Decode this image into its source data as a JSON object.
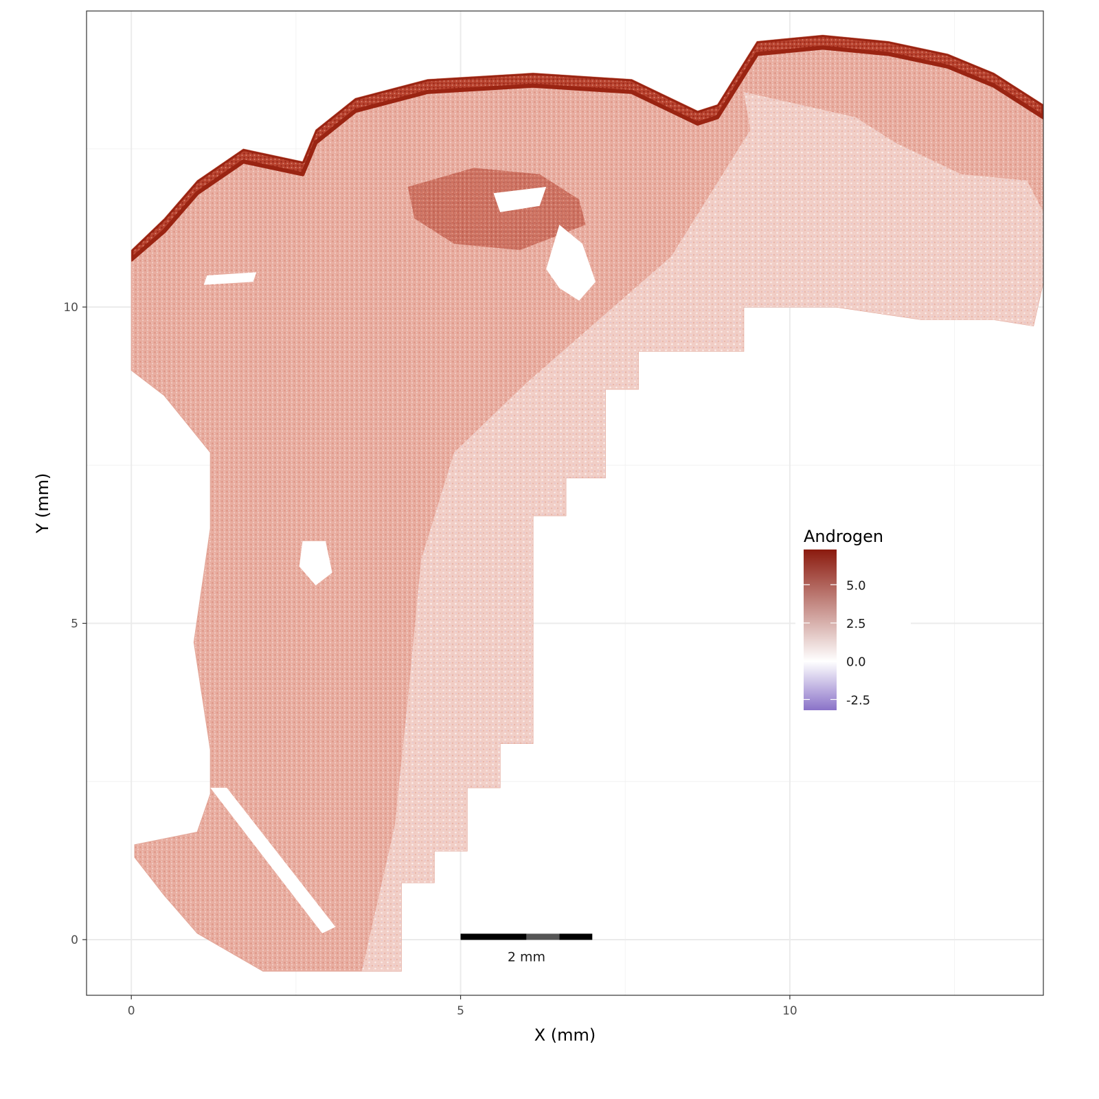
{
  "chart_data": {
    "type": "scatter",
    "title": "",
    "xlabel": "X (mm)",
    "ylabel": "Y (mm)",
    "xlim": [
      -0.68,
      13.85
    ],
    "ylim": [
      -0.88,
      14.68
    ],
    "x_ticks": [
      0,
      5,
      10
    ],
    "y_ticks": [
      0,
      5,
      10
    ],
    "x_tick_labels": [
      "0",
      "5",
      "10"
    ],
    "y_tick_labels": [
      "0",
      "5",
      "10"
    ],
    "grid": true,
    "legend": {
      "title": "Androgen",
      "placement": "right-inside",
      "range": [
        -3.2,
        7.3
      ],
      "breaks": [
        5.0,
        2.5,
        0.0,
        -2.5
      ],
      "break_labels": [
        "5.0",
        "2.5",
        "0.0",
        "-2.5"
      ],
      "colors": {
        "low": "#8a72c8",
        "mid": "#ffffff",
        "high": "#8b1a0e"
      }
    },
    "scale_bar": {
      "label": "2 mm",
      "length_mm": 2,
      "x_start": 5.0,
      "y": 0.05
    },
    "tissue_region": {
      "outline": [
        [
          0,
          10.9
        ],
        [
          0.5,
          11.4
        ],
        [
          1.0,
          12.0
        ],
        [
          1.7,
          12.5
        ],
        [
          2.6,
          12.3
        ],
        [
          2.8,
          12.8
        ],
        [
          3.4,
          13.3
        ],
        [
          4.5,
          13.6
        ],
        [
          6.1,
          13.7
        ],
        [
          7.6,
          13.6
        ],
        [
          8.6,
          13.1
        ],
        [
          8.9,
          13.2
        ],
        [
          9.5,
          14.2
        ],
        [
          10.5,
          14.3
        ],
        [
          11.5,
          14.2
        ],
        [
          12.4,
          14.0
        ],
        [
          13.1,
          13.7
        ],
        [
          13.85,
          13.2
        ],
        [
          13.85,
          10.4
        ],
        [
          13.7,
          9.7
        ],
        [
          13.1,
          9.8
        ],
        [
          12.0,
          9.8
        ],
        [
          10.7,
          10.0
        ],
        [
          9.3,
          10.0
        ],
        [
          9.3,
          9.3
        ],
        [
          7.7,
          9.3
        ],
        [
          7.7,
          8.7
        ],
        [
          7.2,
          8.7
        ],
        [
          7.2,
          7.3
        ],
        [
          6.6,
          7.3
        ],
        [
          6.6,
          6.7
        ],
        [
          6.1,
          6.7
        ],
        [
          6.1,
          3.1
        ],
        [
          5.6,
          3.1
        ],
        [
          5.6,
          2.4
        ],
        [
          5.1,
          2.4
        ],
        [
          5.1,
          1.4
        ],
        [
          4.6,
          1.4
        ],
        [
          4.6,
          0.9
        ],
        [
          4.1,
          0.9
        ],
        [
          4.1,
          -0.5
        ],
        [
          3.0,
          -0.5
        ],
        [
          2.0,
          -0.5
        ],
        [
          1.0,
          0.1
        ],
        [
          0.5,
          0.7
        ],
        [
          0.05,
          1.3
        ],
        [
          0.05,
          1.5
        ],
        [
          1.0,
          1.7
        ],
        [
          1.2,
          2.3
        ],
        [
          1.2,
          3.0
        ],
        [
          0.95,
          4.7
        ],
        [
          1.2,
          6.5
        ],
        [
          1.2,
          7.7
        ],
        [
          0.5,
          8.6
        ],
        [
          0.0,
          9.0
        ],
        [
          0.0,
          10.9
        ]
      ],
      "sparse_blend": [
        [
          9.3,
          13.4
        ],
        [
          11.0,
          13.0
        ],
        [
          11.6,
          12.6
        ],
        [
          12.6,
          12.1
        ],
        [
          13.6,
          12.0
        ],
        [
          13.85,
          11.5
        ],
        [
          13.85,
          10.4
        ],
        [
          13.7,
          9.7
        ],
        [
          12.0,
          9.8
        ],
        [
          10.7,
          10.0
        ],
        [
          9.3,
          10.0
        ],
        [
          9.3,
          9.3
        ],
        [
          7.7,
          9.3
        ],
        [
          7.7,
          8.7
        ],
        [
          7.2,
          8.7
        ],
        [
          7.2,
          7.3
        ],
        [
          6.6,
          7.3
        ],
        [
          6.6,
          6.7
        ],
        [
          6.1,
          6.7
        ],
        [
          6.1,
          3.1
        ],
        [
          5.6,
          3.1
        ],
        [
          5.6,
          2.4
        ],
        [
          5.1,
          2.4
        ],
        [
          5.1,
          1.4
        ],
        [
          4.6,
          1.4
        ],
        [
          4.6,
          0.9
        ],
        [
          4.1,
          0.9
        ],
        [
          4.1,
          -0.5
        ],
        [
          3.5,
          -0.5
        ],
        [
          4.0,
          1.8
        ],
        [
          4.2,
          3.8
        ],
        [
          4.4,
          6.0
        ],
        [
          4.9,
          7.7
        ],
        [
          6.0,
          8.8
        ],
        [
          8.2,
          10.8
        ],
        [
          9.4,
          12.8
        ]
      ],
      "high_rim": [
        [
          0,
          10.75
        ],
        [
          0.5,
          11.2
        ],
        [
          1.0,
          11.8
        ],
        [
          1.7,
          12.3
        ],
        [
          2.6,
          12.1
        ],
        [
          2.8,
          12.6
        ],
        [
          3.4,
          13.1
        ],
        [
          4.5,
          13.4
        ],
        [
          6.1,
          13.5
        ],
        [
          7.6,
          13.4
        ],
        [
          8.6,
          12.9
        ],
        [
          8.9,
          13.0
        ],
        [
          9.5,
          14.0
        ],
        [
          10.5,
          14.1
        ],
        [
          11.5,
          14.0
        ],
        [
          12.4,
          13.8
        ],
        [
          13.1,
          13.5
        ],
        [
          13.85,
          13.0
        ],
        [
          13.85,
          13.2
        ],
        [
          13.1,
          13.7
        ],
        [
          12.4,
          14.0
        ],
        [
          11.5,
          14.2
        ],
        [
          10.5,
          14.3
        ],
        [
          9.5,
          14.2
        ],
        [
          8.9,
          13.2
        ],
        [
          8.6,
          13.1
        ],
        [
          7.6,
          13.6
        ],
        [
          6.1,
          13.7
        ],
        [
          4.5,
          13.6
        ],
        [
          3.4,
          13.3
        ],
        [
          2.8,
          12.8
        ],
        [
          2.6,
          12.3
        ],
        [
          1.7,
          12.5
        ],
        [
          1.0,
          12.0
        ],
        [
          0.5,
          11.4
        ],
        [
          0,
          10.9
        ]
      ],
      "central_patch": [
        [
          4.2,
          11.9
        ],
        [
          5.2,
          12.2
        ],
        [
          6.2,
          12.1
        ],
        [
          6.8,
          11.7
        ],
        [
          6.9,
          11.3
        ],
        [
          5.9,
          10.9
        ],
        [
          4.9,
          11.0
        ],
        [
          4.3,
          11.4
        ]
      ],
      "voids": [
        [
          [
            1.2,
            2.4
          ],
          [
            1.45,
            2.4
          ],
          [
            3.1,
            0.2
          ],
          [
            2.9,
            0.1
          ]
        ],
        [
          [
            6.5,
            11.3
          ],
          [
            6.85,
            11.0
          ],
          [
            7.05,
            10.4
          ],
          [
            6.8,
            10.1
          ],
          [
            6.5,
            10.3
          ],
          [
            6.3,
            10.6
          ]
        ],
        [
          [
            2.6,
            6.3
          ],
          [
            2.95,
            6.3
          ],
          [
            3.05,
            5.8
          ],
          [
            2.8,
            5.6
          ],
          [
            2.55,
            5.9
          ]
        ],
        [
          [
            5.5,
            11.8
          ],
          [
            6.3,
            11.9
          ],
          [
            6.2,
            11.6
          ],
          [
            5.6,
            11.5
          ]
        ],
        [
          [
            1.15,
            10.5
          ],
          [
            1.9,
            10.55
          ],
          [
            1.85,
            10.4
          ],
          [
            1.1,
            10.35
          ]
        ]
      ]
    }
  }
}
